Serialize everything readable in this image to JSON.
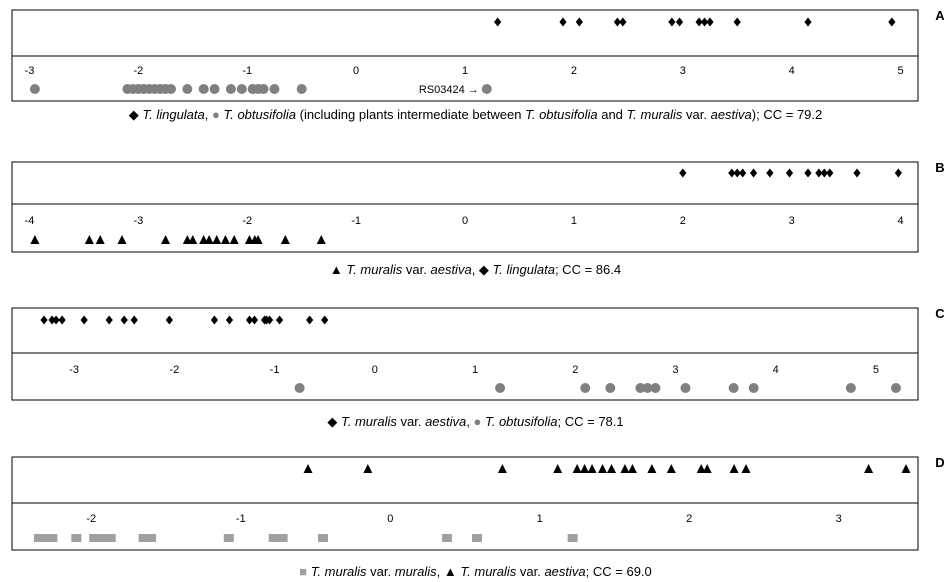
{
  "chart_data": [
    {
      "type": "scatter",
      "panel_label": "A",
      "xlim": [
        -3.05,
        5.05
      ],
      "ticks": [
        "-3",
        "-2",
        "-1",
        "0",
        "1",
        "2",
        "3",
        "4",
        "5"
      ],
      "tick_values": [
        -3,
        -2,
        -1,
        0,
        1,
        2,
        3,
        4,
        5
      ],
      "grid": false,
      "series": [
        {
          "name": "T. lingulata",
          "marker": "diamond",
          "row": "upper",
          "color": "#000000",
          "x": [
            1.3,
            1.9,
            2.05,
            2.4,
            2.45,
            2.9,
            2.97,
            3.15,
            3.2,
            3.25,
            3.5,
            4.15,
            4.92
          ]
        },
        {
          "name": "T. obtusifolia",
          "marker": "circle",
          "row": "lower",
          "color": "#808080",
          "x": [
            -2.95,
            -2.1,
            -2.05,
            -2.0,
            -1.95,
            -1.9,
            -1.85,
            -1.8,
            -1.75,
            -1.7,
            -1.55,
            -1.4,
            -1.3,
            -1.15,
            -1.05,
            -0.95,
            -0.9,
            -0.85,
            -0.75,
            -0.5,
            1.2
          ]
        }
      ],
      "annotations": [
        {
          "text": "RS03424 →",
          "x": 1.2
        }
      ],
      "caption": {
        "s1": "T. lingulata",
        "t1": ", ",
        "s2": "T. obtusifolia",
        "t2": " (including plants intermediate between ",
        "s3": "T. obtusifolia",
        "t3": " and ",
        "s4": "T. muralis",
        "t4": " var. ",
        "s5": "aestiva",
        "t5": "); CC = 79.2"
      }
    },
    {
      "type": "scatter",
      "panel_label": "B",
      "xlim": [
        -4.05,
        4.05
      ],
      "ticks": [
        "-4",
        "-3",
        "-2",
        "-1",
        "0",
        "1",
        "2",
        "3",
        "4"
      ],
      "tick_values": [
        -4,
        -3,
        -2,
        -1,
        0,
        1,
        2,
        3,
        4
      ],
      "grid": false,
      "series": [
        {
          "name": "T. lingulata",
          "marker": "diamond",
          "row": "upper",
          "color": "#000000",
          "x": [
            2.0,
            2.45,
            2.5,
            2.55,
            2.65,
            2.8,
            2.98,
            3.15,
            3.25,
            3.3,
            3.35,
            3.6,
            3.98
          ]
        },
        {
          "name": "T. muralis var. aestiva",
          "marker": "triangle",
          "row": "lower",
          "color": "#000000",
          "x": [
            -3.95,
            -3.45,
            -3.35,
            -3.15,
            -2.75,
            -2.55,
            -2.5,
            -2.4,
            -2.35,
            -2.28,
            -2.2,
            -2.12,
            -1.98,
            -1.93,
            -1.9,
            -1.65,
            -1.32
          ]
        }
      ],
      "caption": {
        "s1": "T. muralis",
        "t1": " var. ",
        "s2": "aestiva",
        "t2": ", ",
        "s3": "T. lingulata",
        "t3": "; CC = 86.4"
      }
    },
    {
      "type": "scatter",
      "panel_label": "C",
      "xlim": [
        -3.5,
        5.3
      ],
      "ticks": [
        "-3",
        "-2",
        "-1",
        "0",
        "1",
        "2",
        "3",
        "4",
        "5"
      ],
      "tick_values": [
        -3,
        -2,
        -1,
        0,
        1,
        2,
        3,
        4,
        5
      ],
      "grid": false,
      "series": [
        {
          "name": "T. muralis var. aestiva",
          "marker": "diamond",
          "row": "upper",
          "color": "#000000",
          "x": [
            -3.3,
            -3.22,
            -3.18,
            -3.12,
            -2.9,
            -2.65,
            -2.5,
            -2.4,
            -2.05,
            -1.6,
            -1.45,
            -1.25,
            -1.2,
            -1.1,
            -1.08,
            -1.05,
            -0.95,
            -0.65,
            -0.5
          ]
        },
        {
          "name": "T. obtusifolia",
          "marker": "circle",
          "row": "lower",
          "color": "#808080",
          "x": [
            -0.75,
            1.25,
            2.1,
            2.35,
            2.65,
            2.72,
            2.8,
            3.1,
            3.58,
            3.78,
            4.75,
            5.2
          ]
        }
      ],
      "caption": {
        "s1": "T. muralis",
        "t1": " var. ",
        "s2": "aestiva",
        "t2": ", ",
        "s3": "T. obtusifolia",
        "t3": "; CC = 78.1"
      }
    },
    {
      "type": "scatter",
      "panel_label": "D",
      "xlim": [
        -2.45,
        3.45
      ],
      "ticks": [
        "-2",
        "-1",
        "0",
        "1",
        "2",
        "3"
      ],
      "tick_values": [
        -2,
        -1,
        0,
        1,
        2,
        3
      ],
      "grid": false,
      "series": [
        {
          "name": "T. muralis var. aestiva",
          "marker": "triangle",
          "row": "upper",
          "color": "#000000",
          "x": [
            -0.55,
            -0.15,
            0.75,
            1.12,
            1.25,
            1.3,
            1.35,
            1.42,
            1.48,
            1.57,
            1.62,
            1.75,
            1.88,
            2.08,
            2.12,
            2.3,
            2.38,
            3.2,
            3.45
          ]
        },
        {
          "name": "T. muralis var. muralis",
          "marker": "square",
          "row": "lower",
          "color": "#a0a0a0",
          "x": [
            -2.35,
            -2.3,
            -2.26,
            -2.1,
            -1.98,
            -1.93,
            -1.87,
            -1.65,
            -1.6,
            -1.08,
            -0.78,
            -0.72,
            -0.45,
            0.38,
            0.58,
            1.22
          ]
        }
      ],
      "caption": {
        "s1": "T. muralis",
        "t1": " var. ",
        "s2": "muralis",
        "t2": ", ",
        "s3": "T. muralis",
        "t3": " var. ",
        "s4": "aestiva",
        "t4": "; CC = 69.0"
      }
    }
  ]
}
